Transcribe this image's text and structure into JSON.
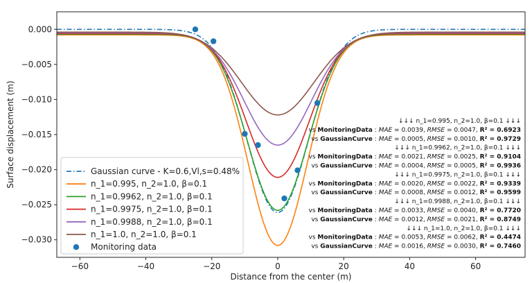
{
  "chart_data": {
    "type": "line",
    "xlabel": "Distance from the center (m)",
    "ylabel": "Surface displacement (m)",
    "xlim": [
      -67,
      75
    ],
    "ylim": [
      -0.0325,
      0.0025
    ],
    "xticks": [
      -60,
      -40,
      -20,
      0,
      20,
      40,
      60
    ],
    "xtick_labels": [
      "−60",
      "−40",
      "−20",
      "0",
      "20",
      "40",
      "60"
    ],
    "yticks": [
      0.0,
      -0.005,
      -0.01,
      -0.015,
      -0.02,
      -0.025,
      -0.03
    ],
    "ytick_labels": [
      "0.000",
      "−0.005",
      "−0.010",
      "−0.015",
      "−0.020",
      "−0.025",
      "−0.030"
    ],
    "grid": false,
    "legend_position": "lower-left",
    "series": [
      {
        "name": "Gaussian curve - K=0.6,Vl,s=0.48%",
        "kind": "gaussian",
        "color": "#1f77b4",
        "dash": "dashdot",
        "amplitude": -0.0261,
        "width": 9.3
      },
      {
        "name": "n_1=0.995, n_2=1.0, β=0.1",
        "kind": "modified",
        "color": "#ff7f0e",
        "amplitude": -0.0308,
        "width": 9.0,
        "tail": 0.0008
      },
      {
        "name": "n_1=0.9962, n_2=1.0, β=0.1",
        "kind": "modified",
        "color": "#2ca02c",
        "amplitude": -0.0258,
        "width": 9.2,
        "tail": 0.0007
      },
      {
        "name": "n_1=0.9975, n_2=1.0, β=0.1",
        "kind": "modified",
        "color": "#d62728",
        "amplitude": -0.0211,
        "width": 9.6,
        "tail": 0.0006
      },
      {
        "name": "n_1=0.9988, n_2=1.0, β=0.1",
        "kind": "modified",
        "color": "#9467bd",
        "amplitude": -0.0165,
        "width": 10.2,
        "tail": 0.0005
      },
      {
        "name": "n_1=1.0, n_2=1.0, β=0.1",
        "kind": "modified",
        "color": "#8c564b",
        "amplitude": -0.0122,
        "width": 11.0,
        "tail": 0.0004
      },
      {
        "name": "Monitoring data",
        "kind": "scatter",
        "color": "#1f77b4",
        "x": [
          -25,
          -19.5,
          -10,
          -6,
          2,
          6,
          12
        ],
        "y": [
          0.0,
          -0.0017,
          -0.0149,
          -0.0165,
          -0.0241,
          -0.0201,
          -0.0105
        ]
      }
    ],
    "annotations": [
      {
        "type": "header",
        "text": "↓↓↓ n_1=0.995, n_2=1.0, β=0.1 ↓↓↓"
      },
      {
        "type": "row",
        "target": "MonitoringData",
        "mae": "0.0039",
        "rmse": "0.0047",
        "r2": "0.6923"
      },
      {
        "type": "row",
        "target": "GaussianCurve",
        "mae": "0.0005",
        "rmse": "0.0010",
        "r2": "0.9729"
      },
      {
        "type": "header",
        "text": "↓↓↓ n_1=0.9962, n_2=1.0, β=0.1 ↓↓↓"
      },
      {
        "type": "row",
        "target": "MonitoringData",
        "mae": "0.0021",
        "rmse": "0.0025",
        "r2": "0.9104"
      },
      {
        "type": "row",
        "target": "GaussianCurve",
        "mae": "0.0004",
        "rmse": "0.0005",
        "r2": "0.9936"
      },
      {
        "type": "header",
        "text": "↓↓↓ n_1=0.9975, n_2=1.0, β=0.1 ↓↓↓"
      },
      {
        "type": "row",
        "target": "MonitoringData",
        "mae": "0.0020",
        "rmse": "0.0022",
        "r2": "0.9339"
      },
      {
        "type": "row",
        "target": "GaussianCurve",
        "mae": "0.0008",
        "rmse": "0.0012",
        "r2": "0.9599"
      },
      {
        "type": "header",
        "text": "↓↓↓ n_1=0.9988, n_2=1.0, β=0.1 ↓↓↓"
      },
      {
        "type": "row",
        "target": "MonitoringData",
        "mae": "0.0033",
        "rmse": "0.0040",
        "r2": "0.7720"
      },
      {
        "type": "row",
        "target": "GaussianCurve",
        "mae": "0.0012",
        "rmse": "0.0021",
        "r2": "0.8749"
      },
      {
        "type": "header",
        "text": "↓↓↓ n_1=1.0, n_2=1.0, β=0.1 ↓↓↓"
      },
      {
        "type": "row",
        "target": "MonitoringData",
        "mae": "0.0053",
        "rmse": "0.0062",
        "r2": "0.4474"
      },
      {
        "type": "row",
        "target": "GaussianCurve",
        "mae": "0.0016",
        "rmse": "0.0030",
        "r2": "0.7460"
      }
    ],
    "labels": {
      "vs": "vs",
      "mae": "MAE",
      "rmse": "RMSE",
      "r2": "R²"
    }
  }
}
